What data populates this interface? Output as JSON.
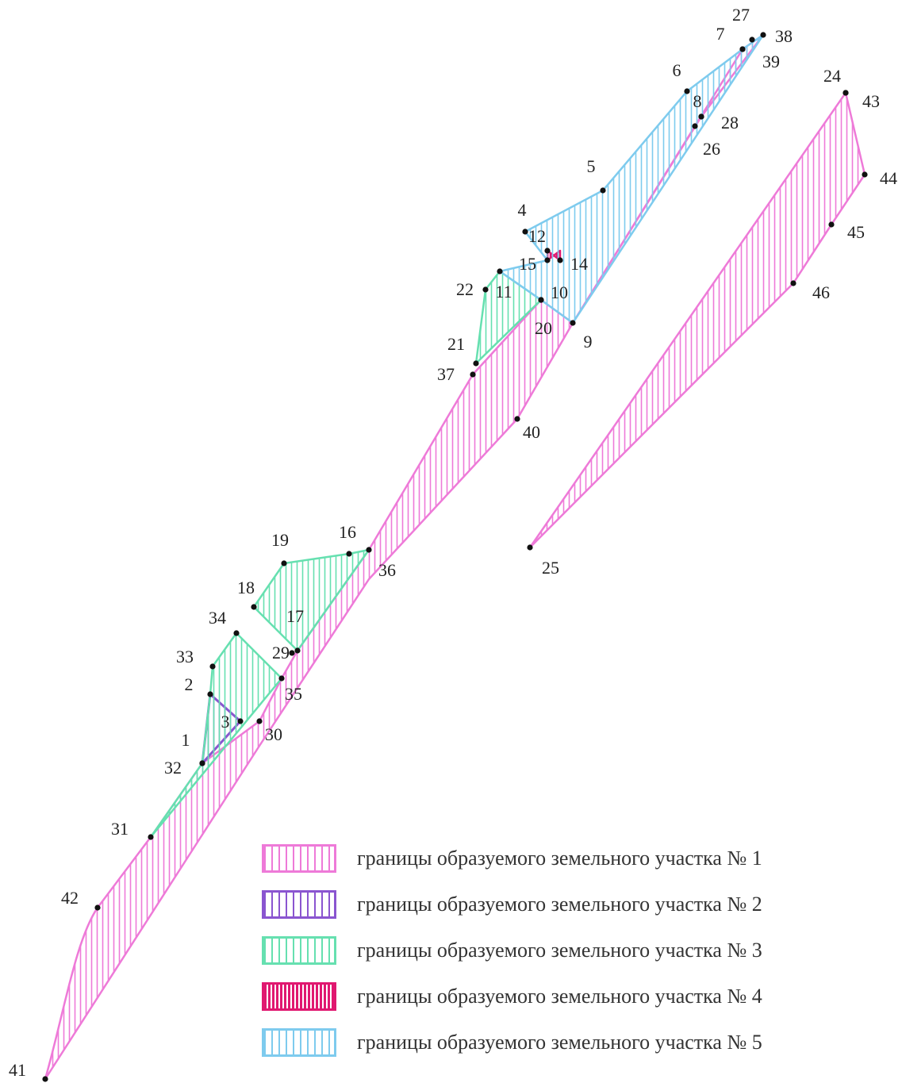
{
  "parcels": [
    {
      "id": "1",
      "color": "#ee7ad8",
      "points": [
        "42",
        "31",
        "32",
        "30",
        "35",
        "29",
        "36",
        "37",
        "10",
        "26",
        "39",
        "38",
        "9",
        "40",
        "41"
      ]
    },
    {
      "id": "1b",
      "color": "#ee7ad8",
      "points": [
        "24",
        "43",
        "44",
        "45",
        "46",
        "25"
      ]
    },
    {
      "id": "2",
      "color": "#8a55d0",
      "points": [
        "1",
        "2",
        "3"
      ]
    },
    {
      "id": "3a",
      "color": "#66e0b0",
      "points": [
        "31",
        "32",
        "2",
        "33",
        "34",
        "35"
      ]
    },
    {
      "id": "3b",
      "color": "#66e0b0",
      "points": [
        "18",
        "19",
        "16",
        "36",
        "29"
      ]
    },
    {
      "id": "3c",
      "color": "#66e0b0",
      "points": [
        "22",
        "11",
        "10",
        "20",
        "21"
      ]
    },
    {
      "id": "4",
      "color": "#e01870",
      "points": [
        "12",
        "14",
        "14b",
        "15"
      ]
    },
    {
      "id": "5",
      "color": "#7ecbee",
      "points": [
        "15",
        "4",
        "5",
        "6",
        "7",
        "38",
        "9",
        "10",
        "11"
      ]
    }
  ],
  "point_labels": [
    "1",
    "2",
    "3",
    "4",
    "5",
    "6",
    "7",
    "8",
    "9",
    "10",
    "11",
    "12",
    "14",
    "15",
    "16",
    "17",
    "18",
    "19",
    "20",
    "21",
    "22",
    "24",
    "25",
    "26",
    "27",
    "28",
    "29",
    "30",
    "31",
    "32",
    "33",
    "34",
    "35",
    "36",
    "37",
    "38",
    "39",
    "40",
    "41",
    "42",
    "43",
    "44",
    "45",
    "46"
  ],
  "legend": [
    {
      "label": "границы образуемого земельного участка № 1",
      "color": "#ee7ad8"
    },
    {
      "label": "границы образуемого земельного участка № 2",
      "color": "#8a55d0"
    },
    {
      "label": "границы образуемого земельного участка № 3",
      "color": "#66e0b0"
    },
    {
      "label": "границы образуемого земельного участка № 4",
      "color": "#e01870"
    },
    {
      "label": "границы образуемого земельного участка № 5",
      "color": "#7ecbee"
    }
  ]
}
